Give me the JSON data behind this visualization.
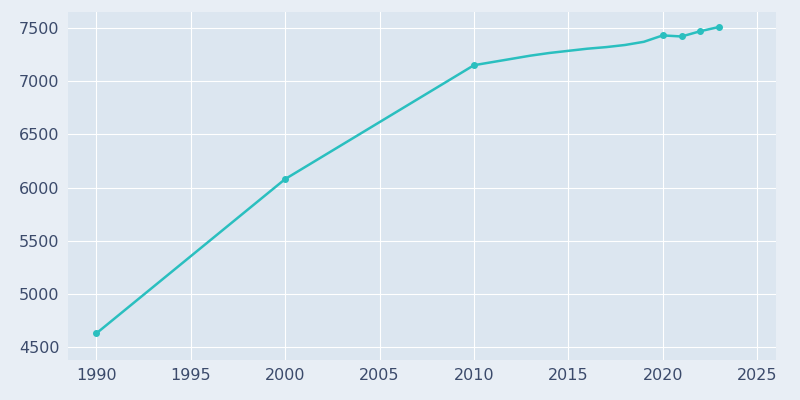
{
  "years": [
    1990,
    2000,
    2010,
    2011,
    2012,
    2013,
    2014,
    2015,
    2016,
    2017,
    2018,
    2019,
    2020,
    2021,
    2022,
    2023
  ],
  "population": [
    4630,
    6080,
    7150,
    7180,
    7210,
    7240,
    7265,
    7285,
    7305,
    7320,
    7340,
    7370,
    7430,
    7420,
    7470,
    7510
  ],
  "marker_years": [
    1990,
    2000,
    2010,
    2020,
    2021,
    2022,
    2023
  ],
  "marker_population": [
    4630,
    6080,
    7150,
    7430,
    7420,
    7470,
    7510
  ],
  "line_color": "#2abfbf",
  "marker_color": "#2abfbf",
  "bg_color": "#e8eef5",
  "plot_bg_color": "#dce6f0",
  "grid_color": "#ffffff",
  "xlim": [
    1988.5,
    2026
  ],
  "ylim": [
    4380,
    7650
  ],
  "xticks": [
    1990,
    1995,
    2000,
    2005,
    2010,
    2015,
    2020,
    2025
  ],
  "yticks": [
    4500,
    5000,
    5500,
    6000,
    6500,
    7000,
    7500
  ],
  "tick_color": "#3b4a6b",
  "label_fontsize": 11.5
}
